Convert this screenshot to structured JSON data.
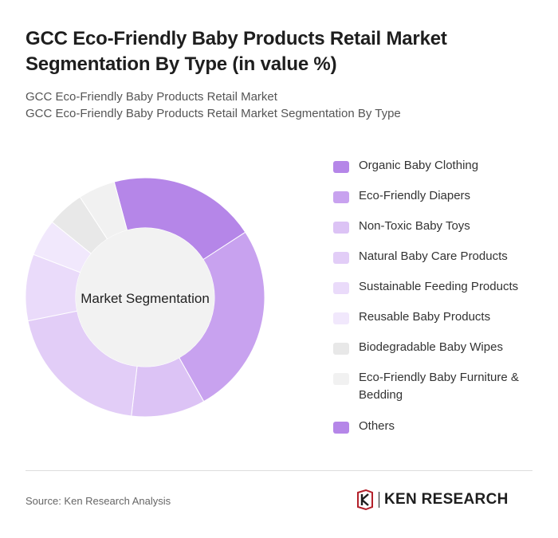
{
  "title": "GCC Eco-Friendly Baby Products Retail Market Segmentation By Type (in value %)",
  "subtitle_1": "GCC Eco-Friendly Baby Products Retail Market",
  "subtitle_2": "GCC Eco-Friendly Baby Products Retail Market Segmentation By Type",
  "source": "Source: Ken Research Analysis",
  "brand": {
    "name": "KEN RESEARCH",
    "logo_icon": "ken-research-logo-icon"
  },
  "chart_data": {
    "type": "pie",
    "center_label": "Market Segmentation",
    "donut": true,
    "legend_position": "right",
    "categories": [
      "Organic Baby Clothing",
      "Eco-Friendly Diapers",
      "Non-Toxic Baby Toys",
      "Natural Baby Care Products",
      "Sustainable Feeding Products",
      "Reusable Baby Products",
      "Biodegradable Baby Wipes",
      "Eco-Friendly Baby Furniture & Bedding",
      "Others"
    ],
    "values": [
      20,
      26,
      10,
      20,
      9,
      5,
      5,
      5,
      0
    ],
    "colors": [
      "#b586e8",
      "#c8a2ef",
      "#dcc3f5",
      "#e2cdf7",
      "#eadbfa",
      "#f1e8fc",
      "#e8e8e8",
      "#f1f1f1",
      "#b586e8"
    ],
    "start_category": "Organic Baby Clothing"
  }
}
